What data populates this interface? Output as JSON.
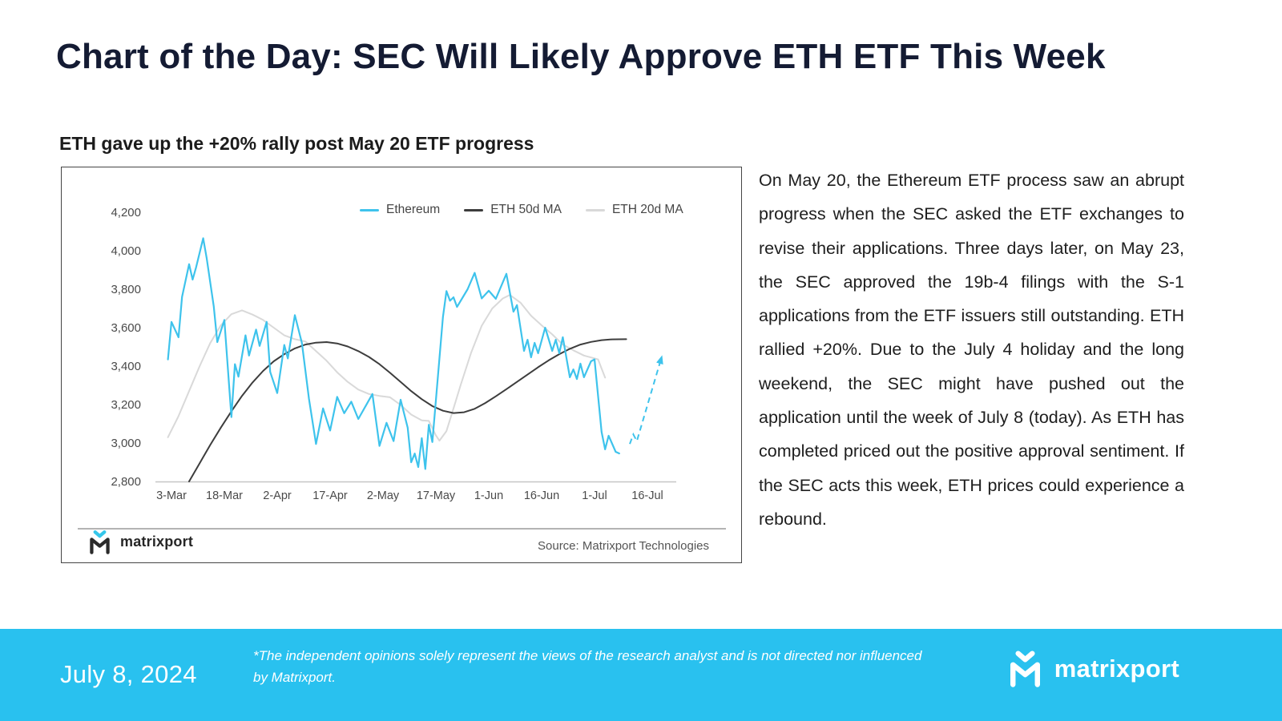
{
  "page": {
    "title": "Chart of the Day: SEC Will Likely Approve ETH ETF This Week",
    "subtitle": "ETH gave up the +20% rally post May 20 ETF progress"
  },
  "chart_data": {
    "type": "line",
    "x_origin": "2024-03-03",
    "x_ticks": [
      {
        "label": "3-Mar",
        "date": "2024-03-03"
      },
      {
        "label": "18-Mar",
        "date": "2024-03-18"
      },
      {
        "label": "2-Apr",
        "date": "2024-04-02"
      },
      {
        "label": "17-Apr",
        "date": "2024-04-17"
      },
      {
        "label": "2-May",
        "date": "2024-05-02"
      },
      {
        "label": "17-May",
        "date": "2024-05-17"
      },
      {
        "label": "1-Jun",
        "date": "2024-06-01"
      },
      {
        "label": "16-Jun",
        "date": "2024-06-16"
      },
      {
        "label": "1-Jul",
        "date": "2024-07-01"
      },
      {
        "label": "16-Jul",
        "date": "2024-07-16"
      }
    ],
    "y_ticks": [
      2800,
      3000,
      3200,
      3400,
      3600,
      3800,
      4000,
      4200
    ],
    "ylim": [
      2800,
      4200
    ],
    "grid": false,
    "legend_position": "top-right",
    "series": [
      {
        "name": "Ethereum",
        "color": "#3ec3ec",
        "width": 2.2,
        "points": [
          [
            "2024-03-02",
            3435
          ],
          [
            "2024-03-03",
            3630
          ],
          [
            "2024-03-05",
            3550
          ],
          [
            "2024-03-06",
            3760
          ],
          [
            "2024-03-08",
            3930
          ],
          [
            "2024-03-09",
            3850
          ],
          [
            "2024-03-10",
            3915
          ],
          [
            "2024-03-12",
            4065
          ],
          [
            "2024-03-13",
            3960
          ],
          [
            "2024-03-15",
            3710
          ],
          [
            "2024-03-16",
            3525
          ],
          [
            "2024-03-18",
            3640
          ],
          [
            "2024-03-20",
            3135
          ],
          [
            "2024-03-21",
            3410
          ],
          [
            "2024-03-22",
            3345
          ],
          [
            "2024-03-24",
            3560
          ],
          [
            "2024-03-25",
            3455
          ],
          [
            "2024-03-27",
            3590
          ],
          [
            "2024-03-28",
            3505
          ],
          [
            "2024-03-30",
            3630
          ],
          [
            "2024-03-31",
            3370
          ],
          [
            "2024-04-02",
            3260
          ],
          [
            "2024-04-04",
            3510
          ],
          [
            "2024-04-05",
            3440
          ],
          [
            "2024-04-07",
            3665
          ],
          [
            "2024-04-09",
            3520
          ],
          [
            "2024-04-11",
            3230
          ],
          [
            "2024-04-13",
            2995
          ],
          [
            "2024-04-15",
            3180
          ],
          [
            "2024-04-17",
            3065
          ],
          [
            "2024-04-19",
            3240
          ],
          [
            "2024-04-21",
            3155
          ],
          [
            "2024-04-23",
            3215
          ],
          [
            "2024-04-25",
            3125
          ],
          [
            "2024-04-27",
            3190
          ],
          [
            "2024-04-29",
            3255
          ],
          [
            "2024-05-01",
            2985
          ],
          [
            "2024-05-03",
            3105
          ],
          [
            "2024-05-05",
            3010
          ],
          [
            "2024-05-07",
            3225
          ],
          [
            "2024-05-09",
            3080
          ],
          [
            "2024-05-10",
            2900
          ],
          [
            "2024-05-11",
            2945
          ],
          [
            "2024-05-12",
            2875
          ],
          [
            "2024-05-13",
            3025
          ],
          [
            "2024-05-14",
            2865
          ],
          [
            "2024-05-15",
            3095
          ],
          [
            "2024-05-16",
            3005
          ],
          [
            "2024-05-19",
            3655
          ],
          [
            "2024-05-20",
            3790
          ],
          [
            "2024-05-21",
            3740
          ],
          [
            "2024-05-22",
            3758
          ],
          [
            "2024-05-23",
            3708
          ],
          [
            "2024-05-26",
            3800
          ],
          [
            "2024-05-28",
            3885
          ],
          [
            "2024-05-30",
            3752
          ],
          [
            "2024-06-01",
            3792
          ],
          [
            "2024-06-03",
            3750
          ],
          [
            "2024-06-06",
            3880
          ],
          [
            "2024-06-08",
            3683
          ],
          [
            "2024-06-09",
            3717
          ],
          [
            "2024-06-11",
            3479
          ],
          [
            "2024-06-12",
            3537
          ],
          [
            "2024-06-13",
            3446
          ],
          [
            "2024-06-14",
            3521
          ],
          [
            "2024-06-15",
            3467
          ],
          [
            "2024-06-17",
            3600
          ],
          [
            "2024-06-19",
            3479
          ],
          [
            "2024-06-20",
            3537
          ],
          [
            "2024-06-21",
            3467
          ],
          [
            "2024-06-22",
            3550
          ],
          [
            "2024-06-24",
            3342
          ],
          [
            "2024-06-25",
            3383
          ],
          [
            "2024-06-26",
            3333
          ],
          [
            "2024-06-27",
            3413
          ],
          [
            "2024-06-28",
            3342
          ],
          [
            "2024-06-30",
            3425
          ],
          [
            "2024-07-01",
            3435
          ],
          [
            "2024-07-03",
            3058
          ],
          [
            "2024-07-04",
            2967
          ],
          [
            "2024-07-05",
            3038
          ],
          [
            "2024-07-07",
            2954
          ],
          [
            "2024-07-08",
            2946
          ]
        ]
      },
      {
        "name": "ETH 50d MA",
        "color": "#3d3d3d",
        "width": 2,
        "points": [
          [
            "2024-03-08",
            2800
          ],
          [
            "2024-03-11",
            2895
          ],
          [
            "2024-03-14",
            2990
          ],
          [
            "2024-03-17",
            3080
          ],
          [
            "2024-03-20",
            3165
          ],
          [
            "2024-03-23",
            3245
          ],
          [
            "2024-03-26",
            3315
          ],
          [
            "2024-03-29",
            3375
          ],
          [
            "2024-04-01",
            3425
          ],
          [
            "2024-04-04",
            3462
          ],
          [
            "2024-04-07",
            3492
          ],
          [
            "2024-04-10",
            3512
          ],
          [
            "2024-04-13",
            3522
          ],
          [
            "2024-04-16",
            3525
          ],
          [
            "2024-04-19",
            3518
          ],
          [
            "2024-04-22",
            3502
          ],
          [
            "2024-04-25",
            3478
          ],
          [
            "2024-04-28",
            3448
          ],
          [
            "2024-05-01",
            3410
          ],
          [
            "2024-05-04",
            3365
          ],
          [
            "2024-05-07",
            3318
          ],
          [
            "2024-05-10",
            3270
          ],
          [
            "2024-05-13",
            3228
          ],
          [
            "2024-05-16",
            3192
          ],
          [
            "2024-05-19",
            3168
          ],
          [
            "2024-05-22",
            3156
          ],
          [
            "2024-05-25",
            3160
          ],
          [
            "2024-05-28",
            3178
          ],
          [
            "2024-05-31",
            3208
          ],
          [
            "2024-06-03",
            3243
          ],
          [
            "2024-06-06",
            3280
          ],
          [
            "2024-06-09",
            3318
          ],
          [
            "2024-06-12",
            3356
          ],
          [
            "2024-06-15",
            3394
          ],
          [
            "2024-06-18",
            3430
          ],
          [
            "2024-06-21",
            3462
          ],
          [
            "2024-06-24",
            3490
          ],
          [
            "2024-06-27",
            3512
          ],
          [
            "2024-06-30",
            3526
          ],
          [
            "2024-07-03",
            3535
          ],
          [
            "2024-07-06",
            3539
          ],
          [
            "2024-07-10",
            3540
          ]
        ]
      },
      {
        "name": "ETH 20d MA",
        "color": "#d9d9d9",
        "width": 2,
        "points": [
          [
            "2024-03-02",
            3030
          ],
          [
            "2024-03-05",
            3140
          ],
          [
            "2024-03-08",
            3270
          ],
          [
            "2024-03-11",
            3400
          ],
          [
            "2024-03-14",
            3520
          ],
          [
            "2024-03-17",
            3612
          ],
          [
            "2024-03-20",
            3670
          ],
          [
            "2024-03-23",
            3690
          ],
          [
            "2024-03-26",
            3668
          ],
          [
            "2024-03-29",
            3640
          ],
          [
            "2024-04-01",
            3600
          ],
          [
            "2024-04-04",
            3560
          ],
          [
            "2024-04-07",
            3540
          ],
          [
            "2024-04-10",
            3528
          ],
          [
            "2024-04-13",
            3478
          ],
          [
            "2024-04-16",
            3428
          ],
          [
            "2024-04-19",
            3368
          ],
          [
            "2024-04-22",
            3318
          ],
          [
            "2024-04-25",
            3278
          ],
          [
            "2024-04-28",
            3255
          ],
          [
            "2024-05-01",
            3245
          ],
          [
            "2024-05-04",
            3238
          ],
          [
            "2024-05-07",
            3198
          ],
          [
            "2024-05-10",
            3148
          ],
          [
            "2024-05-13",
            3118
          ],
          [
            "2024-05-15",
            3115
          ],
          [
            "2024-05-17",
            3040
          ],
          [
            "2024-05-18",
            3012
          ],
          [
            "2024-05-20",
            3062
          ],
          [
            "2024-05-22",
            3180
          ],
          [
            "2024-05-24",
            3300
          ],
          [
            "2024-05-27",
            3470
          ],
          [
            "2024-05-30",
            3610
          ],
          [
            "2024-06-02",
            3700
          ],
          [
            "2024-06-05",
            3752
          ],
          [
            "2024-06-07",
            3770
          ],
          [
            "2024-06-10",
            3730
          ],
          [
            "2024-06-13",
            3662
          ],
          [
            "2024-06-16",
            3612
          ],
          [
            "2024-06-19",
            3565
          ],
          [
            "2024-06-22",
            3512
          ],
          [
            "2024-06-25",
            3482
          ],
          [
            "2024-06-28",
            3455
          ],
          [
            "2024-06-30",
            3445
          ],
          [
            "2024-07-02",
            3435
          ],
          [
            "2024-07-04",
            3340
          ]
        ]
      }
    ],
    "projection": {
      "name": "ETH rebound projection",
      "color": "#3ec3ec",
      "dash": "7 5",
      "arrow": true,
      "points": [
        [
          "2024-07-11",
          2995
        ],
        [
          "2024-07-12",
          3045
        ],
        [
          "2024-07-13",
          3010
        ],
        [
          "2024-07-20",
          3445
        ]
      ]
    },
    "source": "Source: Matrixport Technologies",
    "brand": "matrixport"
  },
  "article": {
    "text": "On May 20, the Ethereum ETF process saw an abrupt progress when the SEC asked the ETF exchanges to revise their applications. Three days later, on May 23, the SEC approved the 19b-4 filings with the S-1 applications from the ETF issuers still outstanding. ETH rallied +20%. Due to the July 4 holiday and the long weekend, the SEC might have pushed out the application until the week of July 8 (today). As ETH has completed priced out the positive approval sentiment. If the SEC acts this week, ETH prices could experience a rebound."
  },
  "footer": {
    "date": "July 8, 2024",
    "disclaimer": "*The independent opinions solely represent the views of the research analyst and is not directed nor influenced by Matrixport.",
    "brand": "matrixport",
    "bg": "#29c1ef"
  },
  "colors": {
    "accent_cyan": "#29c1ef",
    "title_navy": "#141b33",
    "ma50_dark": "#3d3d3d",
    "ma20_gray": "#d9d9d9"
  }
}
